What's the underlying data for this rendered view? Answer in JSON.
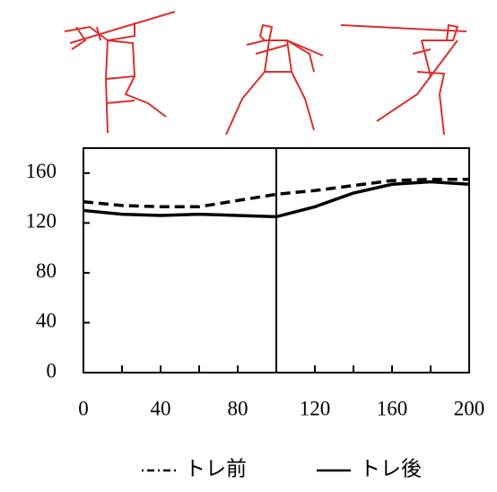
{
  "chart_data": {
    "type": "line",
    "x": [
      0,
      20,
      40,
      60,
      80,
      100,
      120,
      140,
      160,
      180,
      200
    ],
    "series": [
      {
        "name": "トレ前",
        "color": "#000000",
        "style": "dashed",
        "values": [
          137,
          134,
          133,
          133,
          138,
          143,
          146,
          150,
          154,
          155,
          155
        ]
      },
      {
        "name": "トレ後",
        "color": "#000000",
        "style": "solid",
        "values": [
          130,
          127,
          126,
          127,
          126,
          125,
          133,
          144,
          151,
          153,
          151
        ]
      }
    ],
    "xlim": [
      0,
      200
    ],
    "xticks": [
      0,
      40,
      80,
      120,
      160,
      200
    ],
    "xminorticks": [
      20,
      60,
      100,
      140,
      180
    ],
    "ylim": [
      0,
      180
    ],
    "yticks": [
      0,
      40,
      80,
      120,
      160
    ],
    "vline": 100
  }
}
